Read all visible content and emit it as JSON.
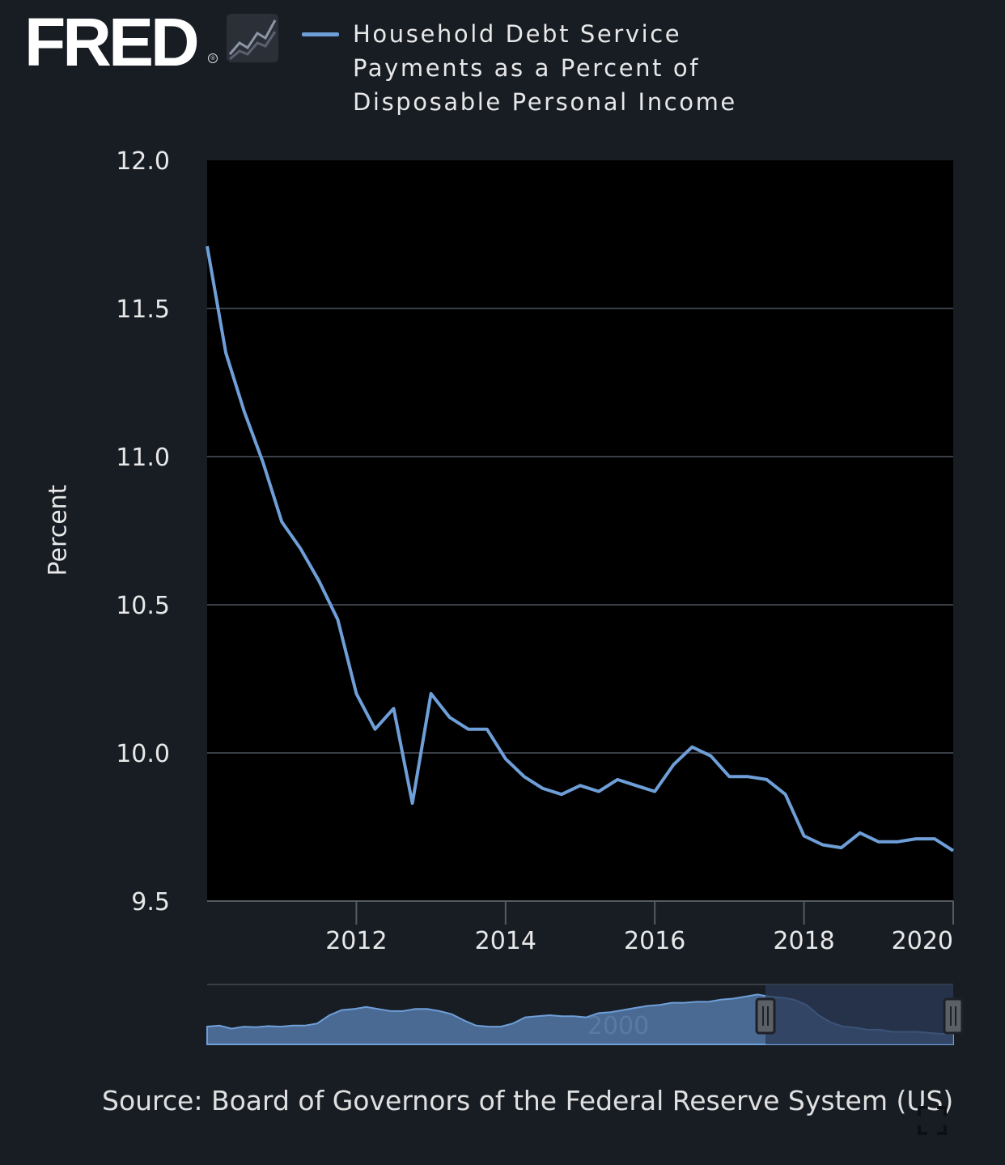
{
  "brand": {
    "logo_text": "FRED"
  },
  "legend": {
    "line1": "Household Debt Service",
    "line2": "Payments as a Percent of",
    "line3": "Disposable Personal Income"
  },
  "source_text": "Source: Board of Governors of the Federal Reserve System (US)",
  "navigator_label": "2000",
  "colors": {
    "series": "#6e9fd8",
    "plot_bg": "#000000",
    "page_bg": "#181d24",
    "navigator_fill": "#4a6a93",
    "navigator_selection": "#2b3a55"
  },
  "icons": {
    "logo_graph": "trend-chart-icon",
    "fullscreen": "expand-icon"
  },
  "chart_data": {
    "type": "line",
    "title": "Household Debt Service Payments as a Percent of Disposable Personal Income",
    "xlabel": "",
    "ylabel": "Percent",
    "xlim": [
      2010.0,
      2020.0
    ],
    "ylim": [
      9.5,
      12.0
    ],
    "yticks": [
      9.5,
      10.0,
      10.5,
      11.0,
      11.5,
      12.0
    ],
    "ytick_labels": [
      "9.5",
      "10.0",
      "10.5",
      "11.0",
      "11.5",
      "12.0"
    ],
    "xticks": [
      2012,
      2014,
      2016,
      2018,
      2020
    ],
    "xtick_labels": [
      "2012",
      "2014",
      "2016",
      "2018",
      "2020"
    ],
    "grid": true,
    "legend_position": "top",
    "series": [
      {
        "name": "Household Debt Service Payments as a Percent of Disposable Personal Income",
        "x": [
          2010.0,
          2010.25,
          2010.5,
          2010.75,
          2011.0,
          2011.25,
          2011.5,
          2011.75,
          2012.0,
          2012.25,
          2012.5,
          2012.75,
          2013.0,
          2013.25,
          2013.5,
          2013.75,
          2014.0,
          2014.25,
          2014.5,
          2014.75,
          2015.0,
          2015.25,
          2015.5,
          2015.75,
          2016.0,
          2016.25,
          2016.5,
          2016.75,
          2017.0,
          2017.25,
          2017.5,
          2017.75,
          2018.0,
          2018.25,
          2018.5,
          2018.75,
          2019.0,
          2019.25,
          2019.5,
          2019.75,
          2020.0
        ],
        "values": [
          11.71,
          11.35,
          11.15,
          10.98,
          10.78,
          10.69,
          10.58,
          10.45,
          10.2,
          10.08,
          10.15,
          9.83,
          10.2,
          10.12,
          10.08,
          10.08,
          9.98,
          9.92,
          9.88,
          9.86,
          9.89,
          9.87,
          9.91,
          9.89,
          9.87,
          9.96,
          10.02,
          9.99,
          9.92,
          9.92,
          9.91,
          9.86,
          9.72,
          9.69,
          9.68,
          9.73,
          9.7,
          9.7,
          9.71,
          9.71,
          9.67
        ]
      }
    ],
    "navigator": {
      "label": "2000",
      "selected_range": [
        2010.0,
        2020.0
      ]
    }
  }
}
